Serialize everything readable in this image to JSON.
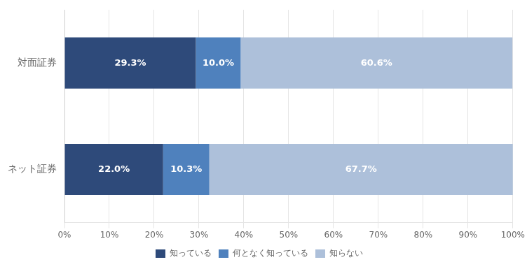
{
  "chart_data": {
    "type": "bar",
    "orientation": "horizontal",
    "stacked": true,
    "categories": [
      "対面証券",
      "ネット証券"
    ],
    "series": [
      {
        "name": "知っている",
        "color": "#2E4A7A",
        "values": [
          29.3,
          22.0
        ],
        "value_labels": [
          "29.3%",
          "22.0%"
        ]
      },
      {
        "name": "何となく知っている",
        "color": "#4F81BD",
        "values": [
          10.0,
          10.3
        ],
        "value_labels": [
          "10.0%",
          "10.3%"
        ]
      },
      {
        "name": "知らない",
        "color": "#ADC0DA",
        "values": [
          60.6,
          67.7
        ],
        "value_labels": [
          "60.6%",
          "67.7%"
        ]
      }
    ],
    "xlim": [
      0,
      100
    ],
    "xticks": [
      {
        "value": 0,
        "label": "0%"
      },
      {
        "value": 10,
        "label": "10%"
      },
      {
        "value": 20,
        "label": "20%"
      },
      {
        "value": 30,
        "label": "30%"
      },
      {
        "value": 40,
        "label": "40%"
      },
      {
        "value": 50,
        "label": "50%"
      },
      {
        "value": 60,
        "label": "60%"
      },
      {
        "value": 70,
        "label": "70%"
      },
      {
        "value": 80,
        "label": "80%"
      },
      {
        "value": 90,
        "label": "90%"
      },
      {
        "value": 100,
        "label": "100%"
      }
    ],
    "data_labels": true,
    "grid": "x",
    "legend": "bottom"
  }
}
